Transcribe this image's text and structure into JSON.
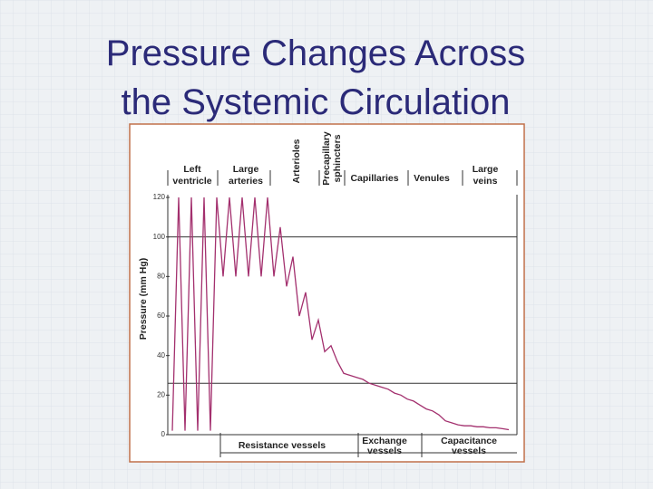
{
  "title": [
    "Pressure Changes Across",
    "the Systemic Circulation"
  ],
  "chart_data": {
    "type": "line",
    "ylabel": "Pressure (mm Hg)",
    "ylim": [
      0,
      120
    ],
    "yticks": [
      0,
      20,
      40,
      60,
      80,
      100,
      120
    ],
    "reference_lines": [
      100,
      26
    ],
    "top_labels": [
      [
        "Left",
        "ventricle"
      ],
      [
        "Large",
        "arteries"
      ],
      [
        "Arterioles"
      ],
      [
        "Precapillary",
        "sphincters"
      ],
      [
        "Capillaries"
      ],
      [
        "Venules"
      ],
      [
        "Large",
        "veins"
      ]
    ],
    "bottom_labels": [
      [
        "Resistance vessels"
      ],
      [
        "Exchange",
        "vessels"
      ],
      [
        "Capacitance",
        "vessels"
      ]
    ],
    "series": [
      {
        "color": "#a3306e",
        "values": [
          2,
          120,
          2,
          120,
          2,
          120,
          2,
          120,
          80,
          120,
          80,
          120,
          80,
          120,
          80,
          120,
          80,
          105,
          75,
          90,
          60,
          72,
          48,
          58,
          42,
          45,
          37,
          31,
          30,
          29,
          28,
          26,
          25,
          24,
          23,
          21,
          20,
          18,
          17,
          15,
          13,
          12,
          10,
          7,
          6,
          5,
          4.5,
          4.5,
          4,
          4,
          3.5,
          3.5,
          3,
          2.5
        ]
      }
    ]
  }
}
